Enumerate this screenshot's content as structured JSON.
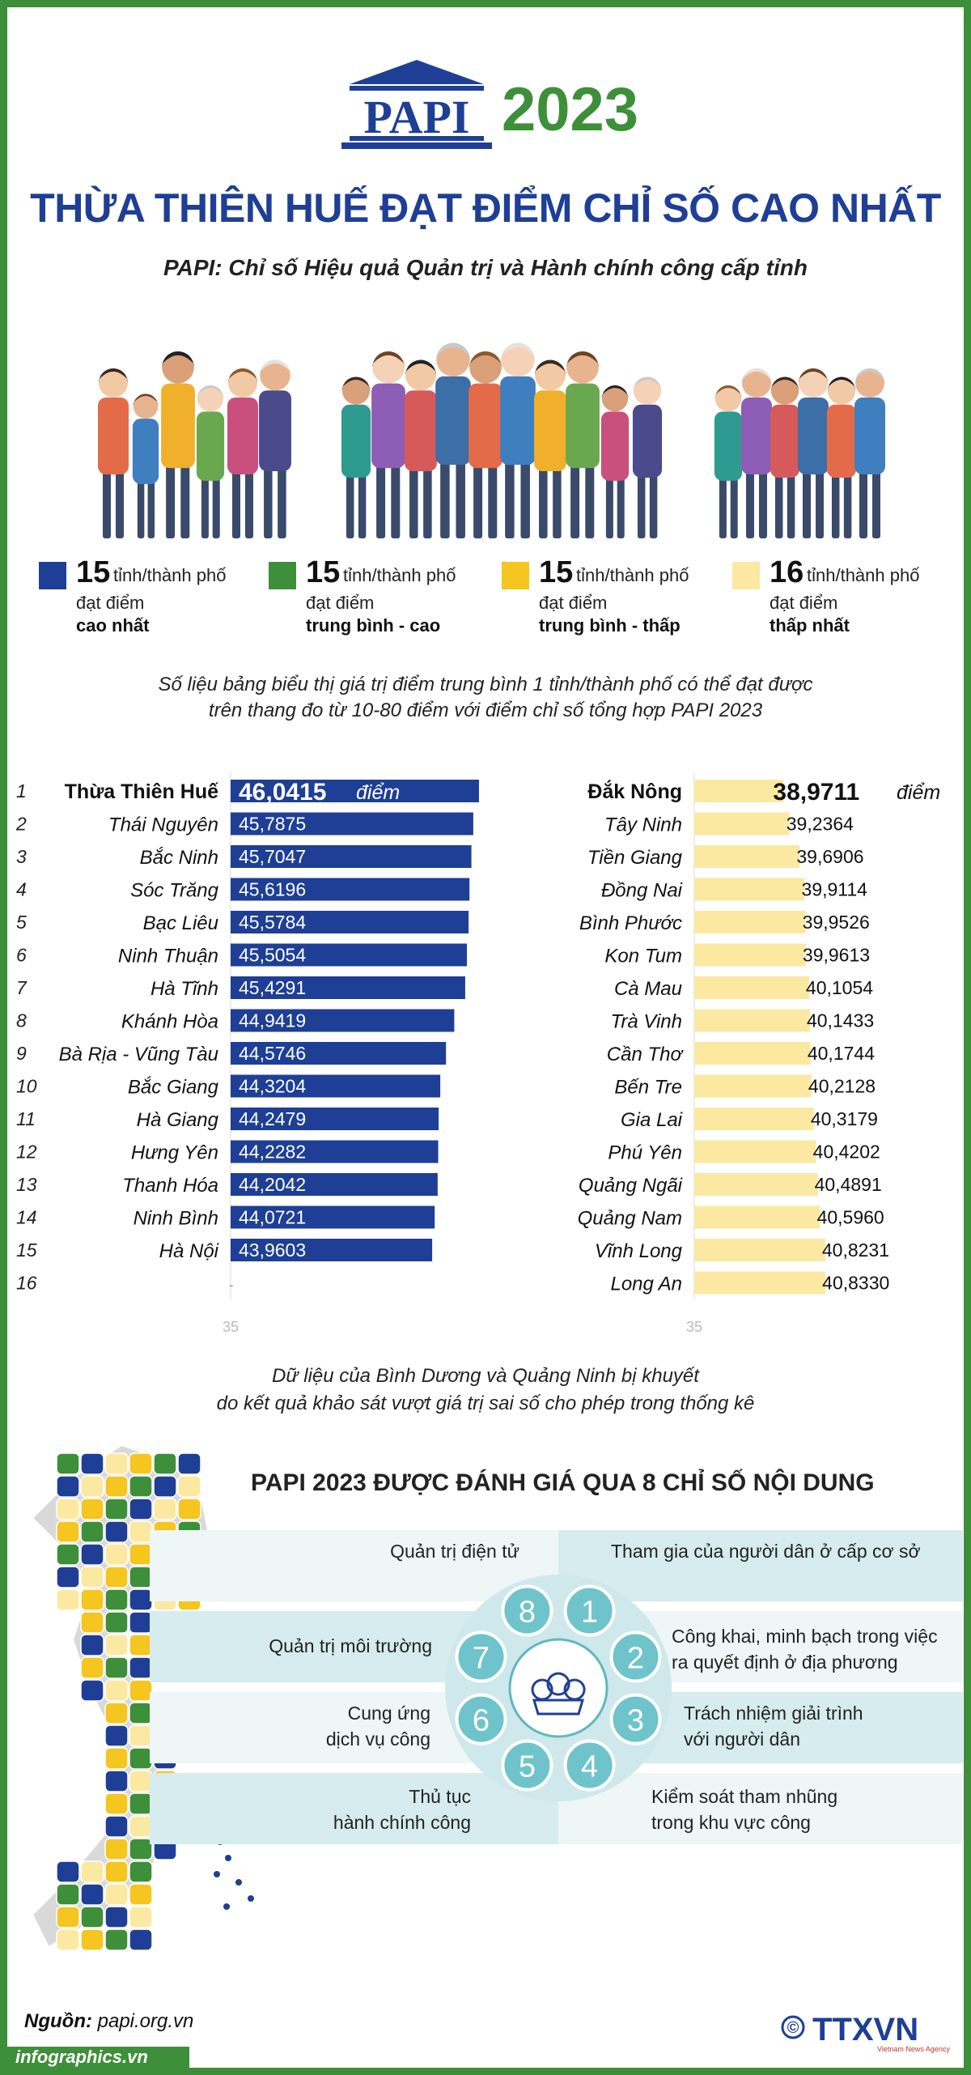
{
  "header": {
    "logo_text": "PAPI",
    "year": "2023",
    "title": "THỪA THIÊN HUẾ ĐẠT ĐIỂM CHỈ SỐ CAO NHẤT",
    "subtitle": "PAPI: Chỉ số Hiệu quả Quản trị và Hành chính công cấp tỉnh"
  },
  "legend": [
    {
      "num": "15",
      "line1": "tỉnh/thành phố",
      "line2": "đạt điểm",
      "line3": "cao nhất",
      "color": "#1e3f95"
    },
    {
      "num": "15",
      "line1": "tỉnh/thành phố",
      "line2": "đạt điểm",
      "line3": "trung bình - cao",
      "color": "#3e8f3a"
    },
    {
      "num": "15",
      "line1": "tỉnh/thành phố",
      "line2": "đạt điểm",
      "line3": "trung bình - thấp",
      "color": "#f5c520"
    },
    {
      "num": "16",
      "line1": "tỉnh/thành phố",
      "line2": "đạt điểm",
      "line3": "thấp nhất",
      "color": "#fbe9a2"
    }
  ],
  "note1": {
    "line1": "Số liệu bảng biểu thị giá trị điểm trung bình 1 tỉnh/thành phố có thể đạt được",
    "line2": "trên thang đo từ 10-80 điểm với điểm chỉ số tổng hợp PAPI 2023"
  },
  "chart_data": {
    "type": "bar",
    "title": "",
    "unit_label": "điểm",
    "axis_min": 35,
    "axis_tick_label": "35",
    "ranks": [
      "1",
      "2",
      "3",
      "4",
      "5",
      "6",
      "7",
      "8",
      "9",
      "10",
      "11",
      "12",
      "13",
      "14",
      "15",
      "16"
    ],
    "series": [
      {
        "name": "15 tỉnh/thành phố đạt điểm cao nhất",
        "color": "#1e3f95",
        "categories": [
          "Thừa Thiên Huế",
          "Thái Nguyên",
          "Bắc Ninh",
          "Sóc Trăng",
          "Bạc Liêu",
          "Ninh Thuận",
          "Hà Tĩnh",
          "Khánh Hòa",
          "Bà Rịa - Vũng Tàu",
          "Bắc Giang",
          "Hà Giang",
          "Hưng Yên",
          "Thanh Hóa",
          "Ninh Bình",
          "Hà Nội"
        ],
        "values": [
          46.0415,
          45.7875,
          45.7047,
          45.6196,
          45.5784,
          45.5054,
          45.4291,
          44.9419,
          44.5746,
          44.3204,
          44.2479,
          44.2282,
          44.2042,
          44.0721,
          43.9603
        ],
        "labels": [
          "46,0415",
          "45,7875",
          "45,7047",
          "45,6196",
          "45,5784",
          "45,5054",
          "45,4291",
          "44,9419",
          "44,5746",
          "44,3204",
          "44,2479",
          "44,2282",
          "44,2042",
          "44,0721",
          "43,9603"
        ]
      },
      {
        "name": "16 tỉnh/thành phố đạt điểm thấp nhất",
        "color": "#fbe9a2",
        "categories": [
          "Đắk Nông",
          "Tây Ninh",
          "Tiền Giang",
          "Đồng Nai",
          "Bình Phước",
          "Kon Tum",
          "Cà Mau",
          "Trà Vinh",
          "Cần Thơ",
          "Bến Tre",
          "Gia Lai",
          "Phú Yên",
          "Quảng Ngãi",
          "Quảng Nam",
          "Vĩnh Long",
          "Long An"
        ],
        "values": [
          38.9711,
          39.2364,
          39.6906,
          39.9114,
          39.9526,
          39.9613,
          40.1054,
          40.1433,
          40.1744,
          40.2128,
          40.3179,
          40.4202,
          40.4891,
          40.596,
          40.8231,
          40.833
        ],
        "labels": [
          "38,9711",
          "39,2364",
          "39,6906",
          "39,9114",
          "39,9526",
          "39,9613",
          "40,1054",
          "40,1433",
          "40,1744",
          "40,2128",
          "40,3179",
          "40,4202",
          "40,4891",
          "40,5960",
          "40,8231",
          "40,8330"
        ]
      }
    ]
  },
  "note2": {
    "line1": "Dữ liệu của Bình Dương và Quảng Ninh bị khuyết",
    "line2": "do kết quả khảo sát vượt giá trị sai số cho phép trong thống kê"
  },
  "section2": {
    "title": "PAPI 2023 ĐƯỢC ĐÁNH GIÁ QUA 8 CHỈ SỐ NỘI DUNG",
    "indicators": [
      {
        "n": "1",
        "l1": "Tham gia của người dân ở cấp cơ sở",
        "l2": ""
      },
      {
        "n": "2",
        "l1": "Công khai, minh bạch trong việc",
        "l2": "ra quyết định ở địa phương"
      },
      {
        "n": "3",
        "l1": "Trách nhiệm giải trình",
        "l2": "với người dân"
      },
      {
        "n": "4",
        "l1": "Kiểm soát tham nhũng",
        "l2": "trong khu vực công"
      },
      {
        "n": "5",
        "l1": "Thủ tục",
        "l2": "hành chính công"
      },
      {
        "n": "6",
        "l1": "Cung ứng",
        "l2": "dịch vụ công"
      },
      {
        "n": "7",
        "l1": "Quản trị môi trường",
        "l2": ""
      },
      {
        "n": "8",
        "l1": "Quản trị điện tử",
        "l2": ""
      }
    ]
  },
  "footer": {
    "source_label": "Nguồn:",
    "source_value": "papi.org.vn",
    "brand": "infographics.vn",
    "copyright": "©",
    "agency": "TTXVN",
    "agency_sub": "Vietnam News Agency"
  },
  "colors": {
    "blue": "#1e3f95",
    "green": "#3e8f3a",
    "yellow": "#f5c520",
    "pale": "#fbe9a2",
    "teal": "#5fb8bf",
    "band": "#d6ecef"
  }
}
